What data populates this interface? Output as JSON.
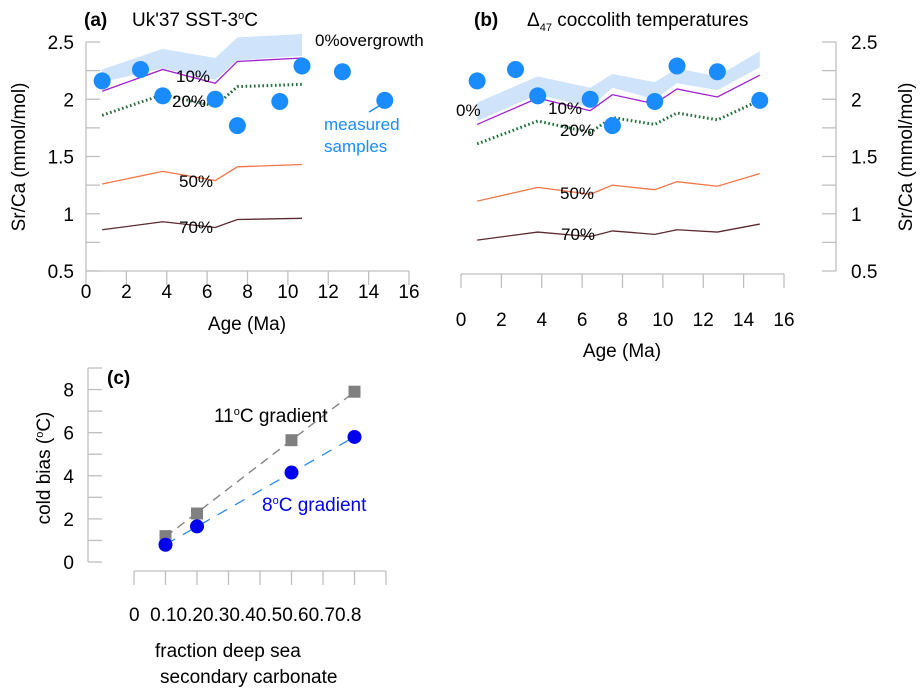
{
  "chart_data": [
    {
      "id": "a",
      "type": "line",
      "panel_letter": "(a)",
      "title": "Uk'37 SST-3",
      "title_suffix": "C",
      "title_degree": "o",
      "xlabel": "Age (Ma)",
      "ylabel": "Sr/Ca (mmol/mol)",
      "xlim": [
        0,
        16
      ],
      "ylim": [
        0.5,
        2.5
      ],
      "xticks": [
        0,
        2,
        4,
        6,
        8,
        10,
        12,
        14,
        16
      ],
      "yticks": [
        0.5,
        1,
        1.5,
        2,
        2.5
      ],
      "ytick_labels": [
        "0.5",
        "1",
        "1.5",
        "2",
        "2.5"
      ],
      "yaxis_side": "left",
      "grid": false,
      "band": {
        "name": "0% overgrowth",
        "label": "0%overgrowth",
        "color": "#cfe3fa",
        "x": [
          0.8,
          3.8,
          6.4,
          7.5,
          10.7
        ],
        "lower": [
          2.15,
          2.27,
          2.17,
          2.34,
          2.38
        ],
        "upper": [
          2.26,
          2.44,
          2.36,
          2.54,
          2.57
        ]
      },
      "series": [
        {
          "name": "10%",
          "label": "10%",
          "color": "#a020d0",
          "style": "solid",
          "x": [
            0.8,
            3.8,
            6.4,
            7.5,
            10.7
          ],
          "y": [
            2.07,
            2.26,
            2.14,
            2.33,
            2.36
          ]
        },
        {
          "name": "20%",
          "label": "20%",
          "color": "#1e6e3a",
          "style": "dotted",
          "x": [
            0.8,
            3.8,
            6.4,
            7.5,
            10.7
          ],
          "y": [
            1.86,
            2.04,
            1.94,
            2.11,
            2.13
          ]
        },
        {
          "name": "50%",
          "label": "50%",
          "color": "#f07848",
          "style": "solid",
          "x": [
            0.8,
            3.8,
            6.4,
            7.5,
            10.7
          ],
          "y": [
            1.26,
            1.37,
            1.29,
            1.41,
            1.43
          ]
        },
        {
          "name": "70%",
          "label": "70%",
          "color": "#5a2a30",
          "style": "solid",
          "x": [
            0.8,
            3.8,
            6.4,
            7.5,
            10.7
          ],
          "y": [
            0.86,
            0.93,
            0.88,
            0.95,
            0.96
          ]
        }
      ],
      "points": {
        "name": "measured samples",
        "color": "#1a8cff",
        "x": [
          0.8,
          2.7,
          3.8,
          6.4,
          7.5,
          9.6,
          10.7,
          12.7,
          14.8
        ],
        "y": [
          2.16,
          2.26,
          2.03,
          2.0,
          1.77,
          1.98,
          2.29,
          2.24,
          1.99
        ]
      },
      "annotation": {
        "line1": "measured",
        "line2": "samples"
      }
    },
    {
      "id": "b",
      "type": "line",
      "panel_letter": "(b)",
      "title_delta": "Δ",
      "title_sub": "47",
      "title": " coccolith temperatures",
      "xlabel": "Age (Ma)",
      "ylabel": "Sr/Ca (mmol/mol)",
      "xlim": [
        0,
        16
      ],
      "ylim": [
        0.5,
        2.5
      ],
      "xticks": [
        0,
        2,
        4,
        6,
        8,
        10,
        12,
        14,
        16
      ],
      "yticks": [
        0.5,
        1,
        1.5,
        2,
        2.5
      ],
      "ytick_labels": [
        "0.5",
        "1",
        "1.5",
        "2",
        "2.5"
      ],
      "yaxis_side": "right",
      "grid": false,
      "band": {
        "name": "0% overgrowth",
        "label": "0%",
        "color": "#cfe3fa",
        "x": [
          0.8,
          3.8,
          6.4,
          7.5,
          9.6,
          10.7,
          12.7,
          14.8
        ],
        "lower": [
          1.81,
          2.04,
          1.93,
          2.1,
          2.0,
          2.14,
          2.08,
          2.28
        ],
        "upper": [
          1.97,
          2.2,
          2.1,
          2.22,
          2.15,
          2.27,
          2.2,
          2.42
        ]
      },
      "series": [
        {
          "name": "10%",
          "label": "10%",
          "color": "#a020d0",
          "style": "solid",
          "x": [
            0.8,
            3.8,
            6.4,
            7.5,
            9.6,
            10.7,
            12.7,
            14.8
          ],
          "y": [
            1.78,
            2.01,
            1.9,
            2.04,
            1.96,
            2.09,
            2.02,
            2.21
          ]
        },
        {
          "name": "20%",
          "label": "20%",
          "color": "#1e6e3a",
          "style": "dotted",
          "x": [
            0.8,
            3.8,
            6.4,
            7.5,
            9.6,
            10.7,
            12.7,
            14.8
          ],
          "y": [
            1.61,
            1.81,
            1.71,
            1.84,
            1.78,
            1.88,
            1.82,
            1.99
          ]
        },
        {
          "name": "50%",
          "label": "50%",
          "color": "#f07848",
          "style": "solid",
          "x": [
            0.8,
            3.8,
            6.4,
            7.5,
            9.6,
            10.7,
            12.7,
            14.8
          ],
          "y": [
            1.11,
            1.23,
            1.17,
            1.25,
            1.21,
            1.28,
            1.24,
            1.35
          ]
        },
        {
          "name": "70%",
          "label": "70%",
          "color": "#5a2a30",
          "style": "solid",
          "x": [
            0.8,
            3.8,
            6.4,
            7.5,
            9.6,
            10.7,
            12.7,
            14.8
          ],
          "y": [
            0.77,
            0.84,
            0.8,
            0.85,
            0.82,
            0.86,
            0.84,
            0.91
          ]
        }
      ],
      "points": {
        "name": "measured samples",
        "color": "#1a8cff",
        "x": [
          0.8,
          2.7,
          3.8,
          6.4,
          7.5,
          9.6,
          10.7,
          12.7,
          14.8
        ],
        "y": [
          2.16,
          2.26,
          2.03,
          2.0,
          1.77,
          1.98,
          2.29,
          2.24,
          1.99
        ]
      }
    },
    {
      "id": "c",
      "type": "scatter",
      "panel_letter": "(c)",
      "xlabel_line1": "fraction deep sea",
      "xlabel_line2": "secondary carbonate",
      "ylabel_pre": "cold bias (",
      "ylabel_deg": "o",
      "ylabel_post": "C)",
      "xlim": [
        0,
        0.8
      ],
      "ylim": [
        0,
        9
      ],
      "xticks": [
        0,
        0.1,
        0.2,
        0.3,
        0.4,
        0.5,
        0.6,
        0.7,
        0.8
      ],
      "xtick_labels_joined": "0  0.10.20.30.40.50.60.70.8",
      "yticks": [
        0,
        2,
        4,
        6,
        8
      ],
      "ytick_labels": [
        "0",
        "2",
        "4",
        "6",
        "8"
      ],
      "grid": false,
      "series": [
        {
          "name": "11°C gradient",
          "label_pre": "11",
          "label_deg": "o",
          "label_post": "C gradient",
          "marker": "square",
          "color": "#808080",
          "line_color": "#808080",
          "label_color": "#000000",
          "x": [
            0.1,
            0.2,
            0.5,
            0.7
          ],
          "y": [
            1.2,
            2.25,
            5.65,
            7.9
          ]
        },
        {
          "name": "8°C gradient",
          "label_pre": "8",
          "label_deg": "o",
          "label_post": "C gradient",
          "marker": "circle",
          "color": "#0000ee",
          "line_color": "#2b8ce8",
          "label_color": "#0000ee",
          "x": [
            0.1,
            0.2,
            0.5,
            0.7
          ],
          "y": [
            0.8,
            1.65,
            4.15,
            5.8
          ]
        }
      ]
    }
  ]
}
